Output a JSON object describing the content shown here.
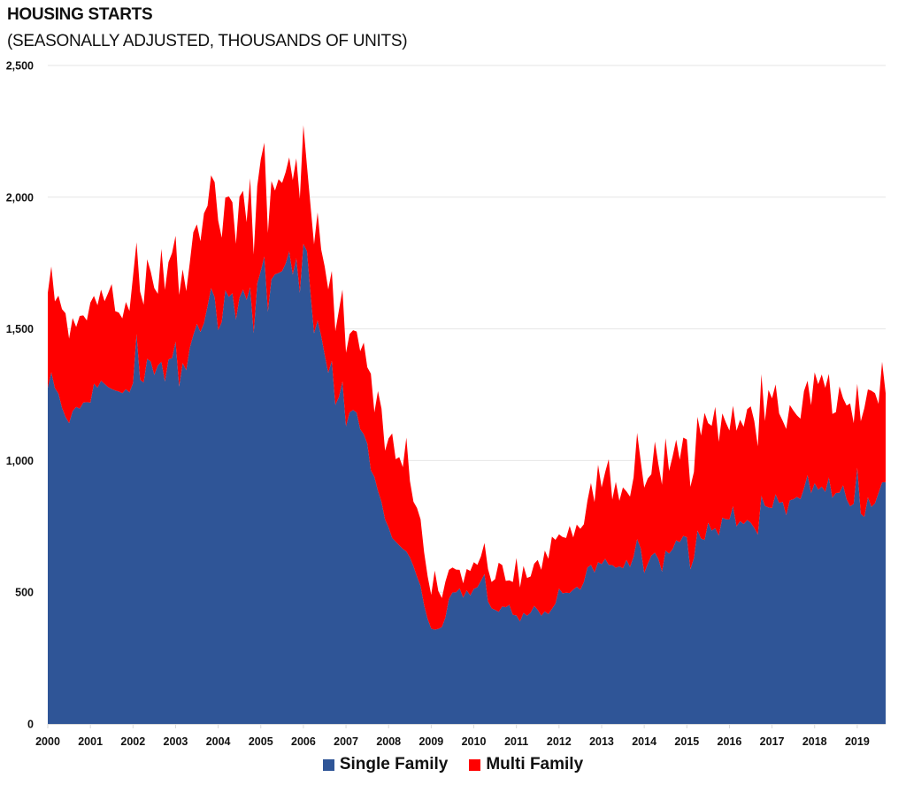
{
  "chart_data": {
    "type": "area",
    "stacked": true,
    "title": "HOUSING STARTS",
    "subtitle": "(SEASONALLY ADJUSTED, THOUSANDS OF UNITS)",
    "xlabel": "",
    "ylabel": "",
    "frequency": "monthly",
    "x_range": [
      "2000-01",
      "2019-09"
    ],
    "x_tick_labels": [
      "2000",
      "2001",
      "2002",
      "2003",
      "2004",
      "2005",
      "2006",
      "2007",
      "2008",
      "2009",
      "2010",
      "2011",
      "2012",
      "2013",
      "2014",
      "2015",
      "2016",
      "2017",
      "2018",
      "2019"
    ],
    "ylim": [
      0,
      2500
    ],
    "y_ticks": [
      0,
      500,
      1000,
      1500,
      2000,
      2500
    ],
    "y_tick_labels": [
      "0",
      "500",
      "1,000",
      "1,500",
      "2,000",
      "2,500"
    ],
    "grid": "horizontal",
    "legend_position": "bottom",
    "series": [
      {
        "name": "Single Family",
        "color": "#2F5597",
        "values": [
          1276,
          1335,
          1275,
          1254,
          1201,
          1166,
          1142,
          1188,
          1204,
          1197,
          1220,
          1222,
          1220,
          1292,
          1277,
          1303,
          1291,
          1279,
          1272,
          1266,
          1262,
          1256,
          1271,
          1259,
          1294,
          1480,
          1307,
          1296,
          1386,
          1376,
          1325,
          1361,
          1375,
          1300,
          1384,
          1389,
          1451,
          1281,
          1370,
          1343,
          1428,
          1477,
          1519,
          1488,
          1522,
          1586,
          1655,
          1620,
          1495,
          1526,
          1647,
          1621,
          1635,
          1535,
          1619,
          1649,
          1610,
          1658,
          1484,
          1672,
          1720,
          1775,
          1565,
          1688,
          1707,
          1712,
          1719,
          1748,
          1794,
          1706,
          1768,
          1637,
          1823,
          1795,
          1637,
          1483,
          1532,
          1474,
          1401,
          1333,
          1378,
          1211,
          1241,
          1300,
          1130,
          1183,
          1192,
          1182,
          1119,
          1100,
          1064,
          963,
          938,
          885,
          843,
          776,
          746,
          706,
          692,
          678,
          665,
          655,
          632,
          599,
          559,
          524,
          451,
          398,
          362,
          358,
          361,
          368,
          404,
          476,
          499,
          500,
          515,
          480,
          507,
          488,
          513,
          519,
          543,
          569,
          465,
          439,
          433,
          426,
          446,
          443,
          452,
          414,
          412,
          389,
          422,
          411,
          423,
          448,
          433,
          411,
          427,
          417,
          437,
          457,
          514,
          496,
          498,
          497,
          510,
          521,
          510,
          539,
          594,
          604,
          575,
          614,
          607,
          627,
          604,
          603,
          593,
          598,
          591,
          623,
          596,
          635,
          702,
          667,
          573,
          608,
          639,
          650,
          626,
          578,
          658,
          647,
          664,
          697,
          690,
          714,
          709,
          587,
          630,
          734,
          704,
          698,
          764,
          734,
          743,
          715,
          783,
          777,
          776,
          826,
          750,
          770,
          759,
          774,
          764,
          744,
          719,
          866,
          828,
          822,
          820,
          872,
          839,
          843,
          793,
          849,
          853,
          862,
          854,
          895,
          945,
          876,
          914,
          889,
          901,
          881,
          936,
          859,
          877,
          878,
          906,
          853,
          826,
          836,
          973,
          798,
          786,
          860,
          824,
          838,
          877,
          917,
          918
        ]
      },
      {
        "name": "Multi Family",
        "color": "#FF0000",
        "values": [
          360,
          402,
          329,
          372,
          374,
          393,
          321,
          353,
          303,
          352,
          331,
          310,
          380,
          333,
          313,
          346,
          314,
          357,
          398,
          301,
          300,
          284,
          331,
          309,
          404,
          349,
          335,
          296,
          378,
          341,
          330,
          272,
          429,
          348,
          369,
          399,
          402,
          348,
          356,
          300,
          323,
          390,
          378,
          345,
          417,
          381,
          428,
          437,
          416,
          320,
          351,
          382,
          346,
          288,
          383,
          375,
          295,
          414,
          298,
          370,
          424,
          432,
          299,
          373,
          318,
          356,
          335,
          347,
          357,
          359,
          379,
          357,
          450,
          324,
          332,
          338,
          410,
          328,
          336,
          317,
          342,
          280,
          329,
          349,
          279,
          297,
          303,
          308,
          296,
          348,
          290,
          367,
          245,
          379,
          354,
          261,
          338,
          397,
          313,
          335,
          310,
          432,
          291,
          245,
          261,
          253,
          201,
          162,
          128,
          224,
          144,
          110,
          136,
          109,
          95,
          86,
          70,
          54,
          81,
          93,
          101,
          85,
          93,
          118,
          123,
          100,
          117,
          186,
          157,
          100,
          93,
          125,
          218,
          129,
          178,
          143,
          137,
          160,
          190,
          174,
          231,
          210,
          274,
          242,
          206,
          214,
          208,
          255,
          198,
          236,
          231,
          219,
          253,
          311,
          267,
          370,
          291,
          329,
          401,
          249,
          326,
          249,
          307,
          260,
          267,
          301,
          403,
          332,
          324,
          324,
          309,
          422,
          359,
          331,
          427,
          314,
          352,
          382,
          313,
          373,
          371,
          313,
          327,
          432,
          391,
          483,
          378,
          398,
          461,
          356,
          396,
          367,
          338,
          382,
          363,
          385,
          369,
          421,
          442,
          406,
          335,
          462,
          322,
          446,
          416,
          417,
          340,
          308,
          327,
          362,
          337,
          310,
          305,
          369,
          358,
          334,
          421,
          401,
          426,
          395,
          393,
          318,
          307,
          404,
          331,
          356,
          391,
          306,
          318,
          351,
          413,
          410,
          441,
          418,
          338,
          458,
          338
        ]
      }
    ]
  }
}
